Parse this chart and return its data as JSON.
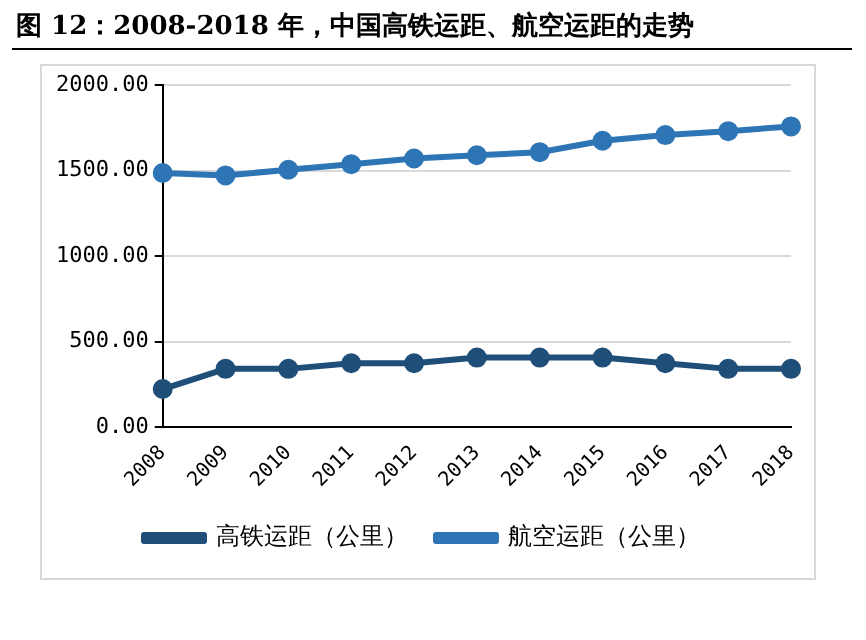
{
  "chart_data": {
    "type": "line",
    "title": "图 12：2008-2018 年，中国高铁运距、航空运距的走势",
    "categories": [
      "2008",
      "2009",
      "2010",
      "2011",
      "2012",
      "2013",
      "2014",
      "2015",
      "2016",
      "2017",
      "2018"
    ],
    "series": [
      {
        "name": "高铁运距（公里）",
        "color": "#1f4e79",
        "values": [
          222,
          340,
          340,
          373,
          373,
          406,
          406,
          406,
          373,
          340,
          340
        ]
      },
      {
        "name": "航空运距（公里）",
        "color": "#2e75b6",
        "values": [
          1486,
          1472,
          1505,
          1538,
          1571,
          1590,
          1608,
          1675,
          1708,
          1731,
          1759
        ]
      }
    ],
    "ylim": [
      0,
      2000
    ],
    "yticks": [
      {
        "value": 0,
        "label": "0.00"
      },
      {
        "value": 500,
        "label": "500.00"
      },
      {
        "value": 1000,
        "label": "1000.00"
      },
      {
        "value": 1500,
        "label": "1500.00"
      },
      {
        "value": 2000,
        "label": "2000.00"
      }
    ],
    "grid": "y",
    "legend": "bottom",
    "marker": "circle",
    "line_style": "solid"
  }
}
